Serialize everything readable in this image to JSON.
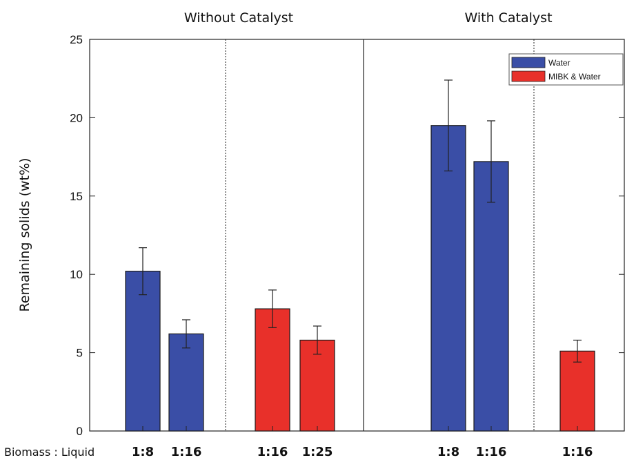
{
  "chart_data": {
    "type": "bar",
    "ylabel": "Remaining solids (wt%)",
    "xlabel": "Biomass : Liquid",
    "ylim": [
      0,
      25
    ],
    "yticks": [
      0,
      5,
      10,
      15,
      20,
      25
    ],
    "groups": [
      "Without Catalyst",
      "With Catalyst"
    ],
    "legend": {
      "position": "top-right"
    },
    "colors": {
      "Water": "#3a4ea6",
      "MIBK & Water": "#e8302a"
    },
    "series": [
      {
        "name": "Water",
        "color": "#3a4ea6"
      },
      {
        "name": "MIBK & Water",
        "color": "#e8302a"
      }
    ],
    "bars": [
      {
        "group": "Without Catalyst",
        "series": "Water",
        "ratio": "1:8",
        "value": 10.2,
        "error": 1.5
      },
      {
        "group": "Without Catalyst",
        "series": "Water",
        "ratio": "1:16",
        "value": 6.2,
        "error": 0.9
      },
      {
        "group": "Without Catalyst",
        "series": "MIBK & Water",
        "ratio": "1:16",
        "value": 7.8,
        "error": 1.2
      },
      {
        "group": "Without Catalyst",
        "series": "MIBK & Water",
        "ratio": "1:25",
        "value": 5.8,
        "error": 0.9
      },
      {
        "group": "With Catalyst",
        "series": "Water",
        "ratio": "1:8",
        "value": 19.5,
        "error": 2.9
      },
      {
        "group": "With Catalyst",
        "series": "Water",
        "ratio": "1:16",
        "value": 17.2,
        "error": 2.6
      },
      {
        "group": "With Catalyst",
        "series": "MIBK & Water",
        "ratio": "1:16",
        "value": 5.1,
        "error": 0.7
      }
    ]
  }
}
